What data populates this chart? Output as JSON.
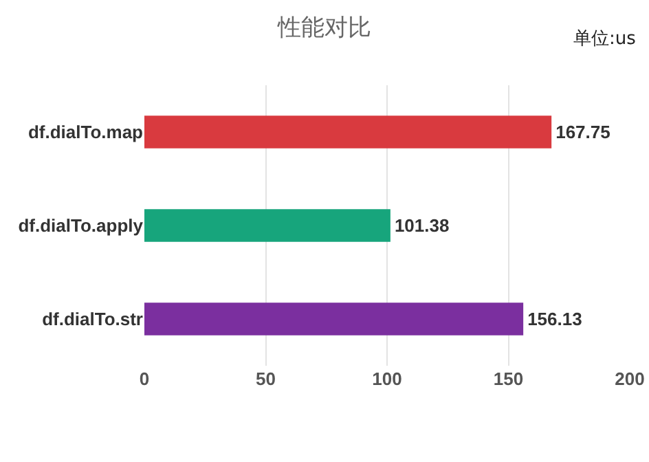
{
  "chart_data": {
    "type": "bar",
    "orientation": "horizontal",
    "title": "性能对比",
    "annotations": [
      "单位:us"
    ],
    "categories": [
      "df.dialTo.map",
      "df.dialTo.apply",
      "df.dialTo.str"
    ],
    "values": [
      167.75,
      101.38,
      156.13
    ],
    "colors": [
      "#d93a3f",
      "#17a57c",
      "#7b2f9f"
    ],
    "xlim": [
      0,
      200
    ],
    "xticks": [
      0,
      50,
      100,
      150,
      200
    ],
    "grid": "x",
    "data_labels": true
  }
}
